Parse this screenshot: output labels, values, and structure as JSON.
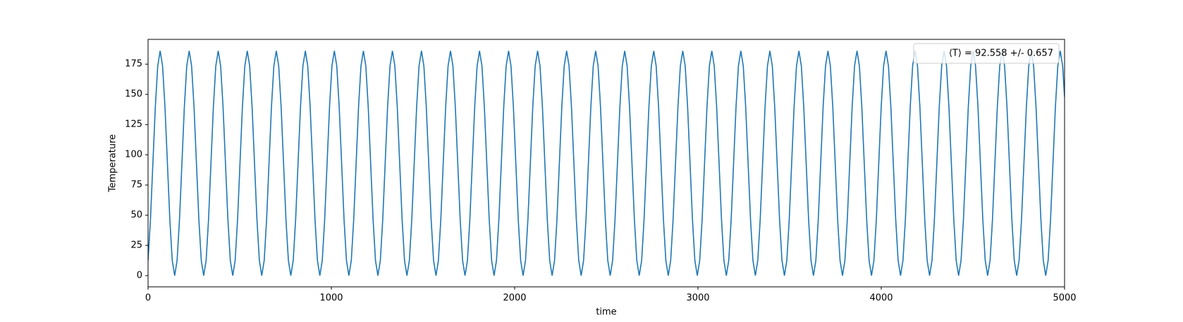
{
  "chart_data": {
    "type": "line",
    "xlabel": "time",
    "ylabel": "Temperature",
    "xlim": [
      0,
      5000
    ],
    "ylim": [
      -9.3,
      195.5
    ],
    "xticks": [
      0,
      1000,
      2000,
      3000,
      4000,
      5000
    ],
    "yticks": [
      0,
      25,
      50,
      75,
      100,
      125,
      150,
      175
    ],
    "legend": "upper right",
    "series": [
      {
        "name": "⟨T⟩ = 92.558 +/- 0.657",
        "color": "#1f77b4",
        "x": [
          0,
          13.2,
          26.4,
          39.6,
          52.8,
          66,
          79.2,
          92.4,
          105.6,
          118.8,
          132,
          145.2,
          158.4,
          171.6,
          184.8,
          198,
          211.2,
          224.4,
          237.6,
          250.8,
          264,
          277.2,
          290.4,
          303.6,
          316.8,
          330,
          343.2,
          356.4,
          369.6,
          382.8,
          396,
          409.2,
          422.4,
          435.6,
          448.8,
          462,
          475.2,
          488.4,
          501.6,
          514.8,
          528,
          541.2,
          554.4,
          567.6,
          580.8,
          594,
          607.2,
          620.4,
          633.6,
          646.8,
          660,
          673.2,
          686.4,
          699.6,
          712.8,
          726,
          739.2,
          752.4,
          765.6,
          778.8,
          792,
          805.2,
          818.4,
          831.6,
          844.8,
          858,
          871.2,
          884.4,
          897.6,
          910.8,
          924,
          937.2,
          950.4,
          963.6,
          976.8,
          990,
          1003.2,
          1016.4,
          1029.6,
          1042.8,
          1056,
          1069.2,
          1082.4,
          1095.6,
          1108.8,
          1122,
          1135.2,
          1148.4,
          1161.6,
          1174.8,
          1188,
          1201.2,
          1214.4,
          1227.6,
          1240.8,
          1254,
          1267.2,
          1280.4,
          1293.6,
          1306.8,
          1320,
          1333.2,
          1346.4,
          1359.6,
          1372.8,
          1386,
          1399.2,
          1412.4,
          1425.6,
          1438.8,
          1452,
          1465.2,
          1478.4,
          1491.6,
          1504.8,
          1518,
          1531.2,
          1544.4,
          1557.6,
          1570.8,
          1584,
          1597.2,
          1610.4,
          1623.6,
          1636.8,
          1650,
          1663.2,
          1676.4,
          1689.6,
          1702.8,
          1716,
          1729.2,
          1742.4,
          1755.6,
          1768.8,
          1782,
          1795.2,
          1808.4,
          1821.6,
          1834.8,
          1848,
          1861.2,
          1874.4,
          1887.6,
          1900.8,
          1914,
          1927.2,
          1940.4,
          1953.6,
          1966.8,
          1980,
          1993.2,
          2006.4,
          2019.6,
          2032.8,
          2046,
          2059.2,
          2072.4,
          2085.6,
          2098.8,
          2112,
          2125.2,
          2138.4,
          2151.6,
          2164.8,
          2178,
          2191.2,
          2204.4,
          2217.6,
          2230.8,
          2244,
          2257.2,
          2270.4,
          2283.6,
          2296.8,
          2310,
          2323.2,
          2336.4,
          2349.6,
          2362.8,
          2376,
          2389.2,
          2402.4,
          2415.6,
          2428.8,
          2442,
          2455.2,
          2468.4,
          2481.6,
          2494.8,
          2508,
          2521.2,
          2534.4,
          2547.6,
          2560.8,
          2574,
          2587.2,
          2600.4,
          2613.6,
          2626.8,
          2640,
          2653.2,
          2666.4,
          2679.6,
          2692.8,
          2706,
          2719.2,
          2732.4,
          2745.6,
          2758.8,
          2772,
          2785.2,
          2798.4,
          2811.6,
          2824.8,
          2838,
          2851.2,
          2864.4,
          2877.6,
          2890.8,
          2904,
          2917.2,
          2930.4,
          2943.6,
          2956.8,
          2970,
          2983.2,
          2996.4,
          3009.6,
          3022.8,
          3036,
          3049.2,
          3062.4,
          3075.6,
          3088.8,
          3102,
          3115.2,
          3128.4,
          3141.6,
          3154.8,
          3168,
          3181.2,
          3194.4,
          3207.6,
          3220.8,
          3234,
          3247.2,
          3260.4,
          3273.6,
          3286.8,
          3300,
          3313.2,
          3326.4,
          3339.6,
          3352.8,
          3366,
          3379.2,
          3392.4,
          3405.6,
          3418.8,
          3432,
          3445.2,
          3458.4,
          3471.6,
          3484.8,
          3498,
          3511.2,
          3524.4,
          3537.6,
          3550.8,
          3564,
          3577.2,
          3590.4,
          3603.6,
          3616.8,
          3630,
          3643.2,
          3656.4,
          3669.6,
          3682.8,
          3696,
          3709.2,
          3722.4,
          3735.6,
          3748.8,
          3762,
          3775.2,
          3788.4,
          3801.6,
          3814.8,
          3828,
          3841.2,
          3854.4,
          3867.6,
          3880.8,
          3894,
          3907.2,
          3920.4,
          3933.6,
          3946.8,
          3960,
          3973.2,
          3986.4,
          3999.6,
          4012.8,
          4026,
          4039.2,
          4052.4,
          4065.6,
          4078.8,
          4092,
          4105.2,
          4118.4,
          4131.6,
          4144.8,
          4158,
          4171.2,
          4184.4,
          4197.6,
          4210.8,
          4224,
          4237.2,
          4250.4,
          4263.6,
          4276.8,
          4290,
          4303.2,
          4316.4,
          4329.6,
          4342.8,
          4356,
          4369.2,
          4382.4,
          4395.6,
          4408.8,
          4422,
          4435.2,
          4448.4,
          4461.6,
          4474.8,
          4488,
          4501.2,
          4514.4,
          4527.6,
          4540.8,
          4554,
          4567.2,
          4580.4,
          4593.6,
          4606.8,
          4620,
          4633.2,
          4646.4,
          4659.6,
          4672.8,
          4686,
          4699.2,
          4712.4,
          4725.6,
          4738.8,
          4752,
          4765.2,
          4778.4,
          4791.6,
          4804.8,
          4818,
          4831.2,
          4844.4,
          4857.6,
          4870.8,
          4884,
          4897.2,
          4910.4,
          4923.6,
          4936.8,
          4950,
          4963.2,
          4976.4,
          4989.6,
          5000
        ],
        "values": [
          12.5,
          46.5,
          93,
          139.5,
          173.5,
          186,
          173.5,
          139.5,
          93,
          46.5,
          12.5,
          0,
          12.5,
          46.5,
          93,
          139.5,
          173.5,
          186,
          173.5,
          139.5,
          93,
          46.5,
          12.5,
          0,
          12.5,
          46.5,
          93,
          139.5,
          173.5,
          186,
          173.5,
          139.5,
          93,
          46.5,
          12.5,
          0,
          12.5,
          46.5,
          93,
          139.5,
          173.5,
          186,
          173.5,
          139.5,
          93,
          46.5,
          12.5,
          0,
          12.5,
          46.5,
          93,
          139.5,
          173.5,
          186,
          173.5,
          139.5,
          93,
          46.5,
          12.5,
          0,
          12.5,
          46.5,
          93,
          139.5,
          173.5,
          186,
          173.5,
          139.5,
          93,
          46.5,
          12.5,
          0,
          12.5,
          46.5,
          93,
          139.5,
          173.5,
          186,
          173.5,
          139.5,
          93,
          46.5,
          12.5,
          0,
          12.5,
          46.5,
          93,
          139.5,
          173.5,
          186,
          173.5,
          139.5,
          93,
          46.5,
          12.5,
          0,
          12.5,
          46.5,
          93,
          139.5,
          173.5,
          186,
          173.5,
          139.5,
          93,
          46.5,
          12.5,
          0,
          12.5,
          46.5,
          93,
          139.5,
          173.5,
          186,
          173.5,
          139.5,
          93,
          46.5,
          12.5,
          0,
          12.5,
          46.5,
          93,
          139.5,
          173.5,
          186,
          173.5,
          139.5,
          93,
          46.5,
          12.5,
          0,
          12.5,
          46.5,
          93,
          139.5,
          173.5,
          186,
          173.5,
          139.5,
          93,
          46.5,
          12.5,
          0,
          12.5,
          46.5,
          93,
          139.5,
          173.5,
          186,
          173.5,
          139.5,
          93,
          46.5,
          12.5,
          0,
          12.5,
          46.5,
          93,
          139.5,
          173.5,
          186,
          173.5,
          139.5,
          93,
          46.5,
          12.5,
          0,
          12.5,
          46.5,
          93,
          139.5,
          173.5,
          186,
          173.5,
          139.5,
          93,
          46.5,
          12.5,
          0,
          12.5,
          46.5,
          93,
          139.5,
          173.5,
          186,
          173.5,
          139.5,
          93,
          46.5,
          12.5,
          0,
          12.5,
          46.5,
          93,
          139.5,
          173.5,
          186,
          173.5,
          139.5,
          93,
          46.5,
          12.5,
          0,
          12.5,
          46.5,
          93,
          139.5,
          173.5,
          186,
          173.5,
          139.5,
          93,
          46.5,
          12.5,
          0,
          12.5,
          46.5,
          93,
          139.5,
          173.5,
          186,
          173.5,
          139.5,
          93,
          46.5,
          12.5,
          0,
          12.5,
          46.5,
          93,
          139.5,
          173.5,
          186,
          173.5,
          139.5,
          93,
          46.5,
          12.5,
          0,
          12.5,
          46.5,
          93,
          139.5,
          173.5,
          186,
          173.5,
          139.5,
          93,
          46.5,
          12.5,
          0,
          12.5,
          46.5,
          93,
          139.5,
          173.5,
          186,
          173.5,
          139.5,
          93,
          46.5,
          12.5,
          0,
          12.5,
          46.5,
          93,
          139.5,
          173.5,
          186,
          173.5,
          139.5,
          93,
          46.5,
          12.5,
          0,
          12.5,
          46.5,
          93,
          139.5,
          173.5,
          186,
          173.5,
          139.5,
          93,
          46.5,
          12.5,
          0,
          12.5,
          46.5,
          93,
          139.5,
          173.5,
          186,
          173.5,
          139.5,
          93,
          46.5,
          12.5,
          0,
          12.5,
          46.5,
          93,
          139.5,
          173.5,
          186,
          173.5,
          139.5,
          93,
          46.5,
          12.5,
          0,
          12.5,
          46.5,
          93,
          139.5,
          173.5,
          186,
          173.5,
          139.5,
          93,
          46.5,
          12.5,
          0,
          12.5,
          46.5,
          93,
          139.5,
          173.5,
          186,
          173.5,
          139.5,
          93,
          46.5,
          12.5,
          0,
          12.5,
          46.5,
          93,
          139.5,
          173.5,
          186,
          173.5,
          139.5,
          93,
          46.5,
          12.5,
          0,
          12.5,
          46.5,
          93,
          139.5,
          173.5,
          186,
          173.5,
          139.5,
          93,
          46.5,
          12.5,
          0,
          12.5,
          46.5,
          93,
          139.5,
          173.5,
          186,
          173.5,
          139.5,
          93,
          46.5,
          12.5,
          0,
          12.5,
          46.5,
          93,
          139.5,
          173.5,
          186,
          173.5,
          148
        ]
      }
    ]
  }
}
